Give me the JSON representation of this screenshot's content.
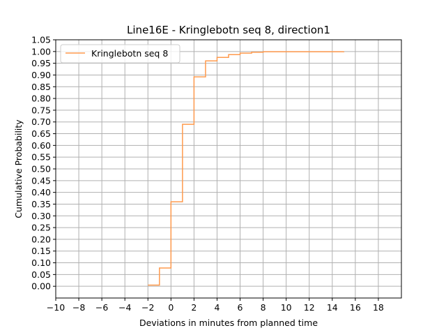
{
  "chart_data": {
    "type": "line",
    "step": true,
    "title": "Line16E - Kringlebotn seq 8, direction1",
    "xlabel": "Deviations in minutes from planned time",
    "ylabel": "Cumulative Probability",
    "xlim": [
      -10,
      20
    ],
    "ylim": [
      -0.05,
      1.05
    ],
    "xticks": [
      -10,
      -8,
      -6,
      -4,
      -2,
      0,
      2,
      4,
      6,
      8,
      10,
      12,
      14,
      16,
      18
    ],
    "xtick_labels": [
      "−10",
      "−8",
      "−6",
      "−4",
      "−2",
      "0",
      "2",
      "4",
      "6",
      "8",
      "10",
      "12",
      "14",
      "16",
      "18"
    ],
    "yticks": [
      0.0,
      0.05,
      0.1,
      0.15,
      0.2,
      0.25,
      0.3,
      0.35,
      0.4,
      0.45,
      0.5,
      0.55,
      0.6,
      0.65,
      0.7,
      0.75,
      0.8,
      0.85,
      0.9,
      0.95,
      1.0,
      1.05
    ],
    "ytick_labels": [
      "0.00",
      "0.05",
      "0.10",
      "0.15",
      "0.20",
      "0.25",
      "0.30",
      "0.35",
      "0.40",
      "0.45",
      "0.50",
      "0.55",
      "0.60",
      "0.65",
      "0.70",
      "0.75",
      "0.80",
      "0.85",
      "0.90",
      "0.95",
      "1.00",
      "1.05"
    ],
    "grid": true,
    "legend_position": "top-left",
    "series": [
      {
        "name": "Kringlebotn seq 8",
        "color": "#ff9a4d",
        "x": [
          -2,
          -1,
          0,
          1,
          2,
          3,
          4,
          5,
          6,
          7,
          8,
          9,
          10,
          11,
          12,
          13,
          14,
          15
        ],
        "y": [
          0.005,
          0.078,
          0.36,
          0.69,
          0.892,
          0.96,
          0.975,
          0.987,
          0.993,
          0.997,
          0.999,
          0.999,
          0.999,
          0.999,
          0.999,
          0.999,
          0.999,
          1.0
        ]
      }
    ]
  }
}
